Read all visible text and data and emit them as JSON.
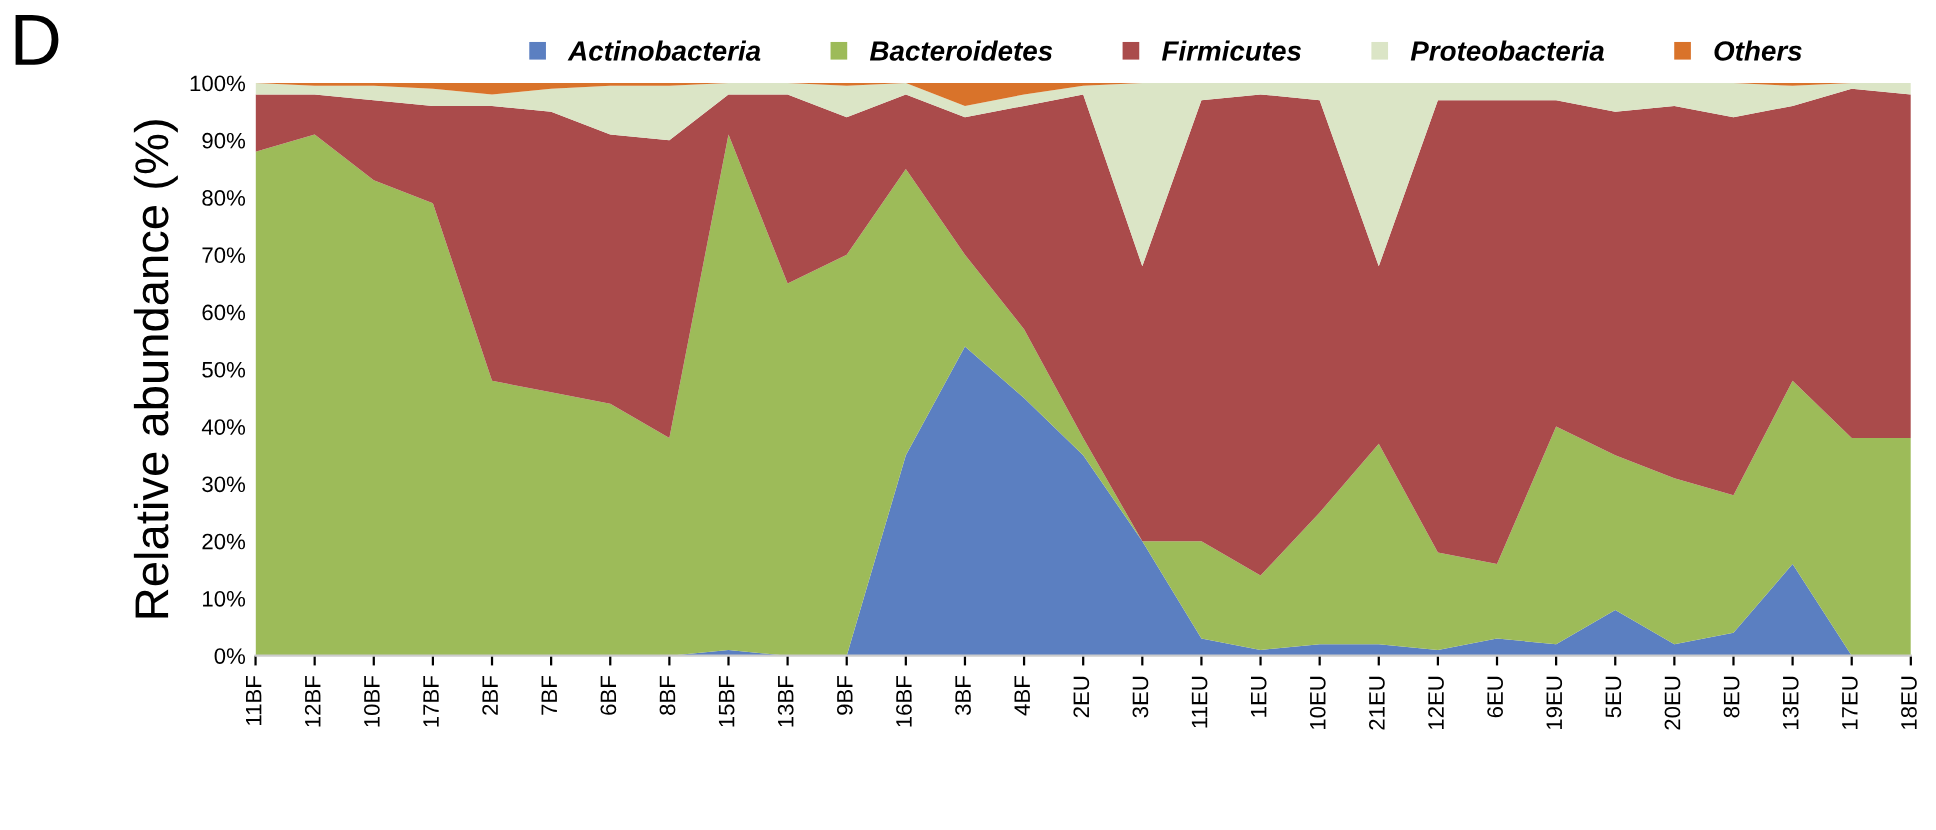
{
  "chart_data": {
    "type": "area",
    "stacked": true,
    "title": "D",
    "ylabel": "Relative abundance (%)",
    "categories": [
      "11BF",
      "12BF",
      "10BF",
      "17BF",
      "2BF",
      "7BF",
      "6BF",
      "8BF",
      "15BF",
      "13BF",
      "9BF",
      "16BF",
      "3BF",
      "4BF",
      "2EU",
      "3EU",
      "11EU",
      "1EU",
      "10EU",
      "21EU",
      "12EU",
      "6EU",
      "19EU",
      "5EU",
      "20EU",
      "8EU",
      "13EU",
      "17EU",
      "18EU"
    ],
    "series": [
      {
        "name": "Actinobacteria",
        "color": "#5b7fc1",
        "values": [
          0,
          0,
          0,
          0,
          0,
          0,
          0,
          0,
          1,
          0,
          0,
          35,
          54,
          45,
          35,
          20,
          3,
          1,
          2,
          2,
          1,
          3,
          2,
          8,
          2,
          4,
          16,
          0,
          0
        ]
      },
      {
        "name": "Bacteroidetes",
        "color": "#9dbb59",
        "values": [
          88,
          91,
          83,
          79,
          48,
          46,
          44,
          38,
          90,
          65,
          70,
          50,
          16,
          12,
          3,
          0,
          17,
          13,
          23,
          35,
          17,
          13,
          38,
          27,
          29,
          24,
          32,
          38,
          38
        ]
      },
      {
        "name": "Firmicutes",
        "color": "#aa4b4b",
        "values": [
          10,
          7,
          14,
          17,
          48,
          49,
          47,
          52,
          7,
          33,
          24,
          13,
          24,
          39,
          60,
          48,
          77,
          84,
          72,
          31,
          79,
          81,
          57,
          60,
          65,
          66,
          48,
          61,
          60
        ]
      },
      {
        "name": "Proteobacteria",
        "color": "#dbe5c6",
        "values": [
          2,
          1.5,
          2.5,
          3,
          2,
          4,
          8.5,
          9.5,
          2,
          2,
          5.5,
          2,
          2,
          2,
          1.5,
          32,
          3,
          2,
          3,
          32,
          3,
          3,
          3,
          5,
          4,
          6,
          3.5,
          1,
          2
        ]
      },
      {
        "name": "Others",
        "color": "#d9732a",
        "values": [
          0,
          0.5,
          0.5,
          1,
          2,
          1,
          0.5,
          0.5,
          0,
          0,
          0.5,
          0,
          4,
          2,
          0.5,
          0,
          0,
          0,
          0,
          0,
          0,
          0,
          0,
          0,
          0,
          0,
          0.5,
          0,
          0
        ]
      }
    ],
    "ylim": [
      0,
      100
    ],
    "yticks": [
      {
        "value": 0,
        "label": "0%"
      },
      {
        "value": 10,
        "label": "10%"
      },
      {
        "value": 20,
        "label": "20%"
      },
      {
        "value": 30,
        "label": "30%"
      },
      {
        "value": 40,
        "label": "40%"
      },
      {
        "value": 50,
        "label": "50%"
      },
      {
        "value": 60,
        "label": "60%"
      },
      {
        "value": 70,
        "label": "70%"
      },
      {
        "value": 80,
        "label": "80%"
      },
      {
        "value": 90,
        "label": "90%"
      },
      {
        "value": 100,
        "label": "100%"
      }
    ],
    "legend": "top",
    "grid": false
  }
}
